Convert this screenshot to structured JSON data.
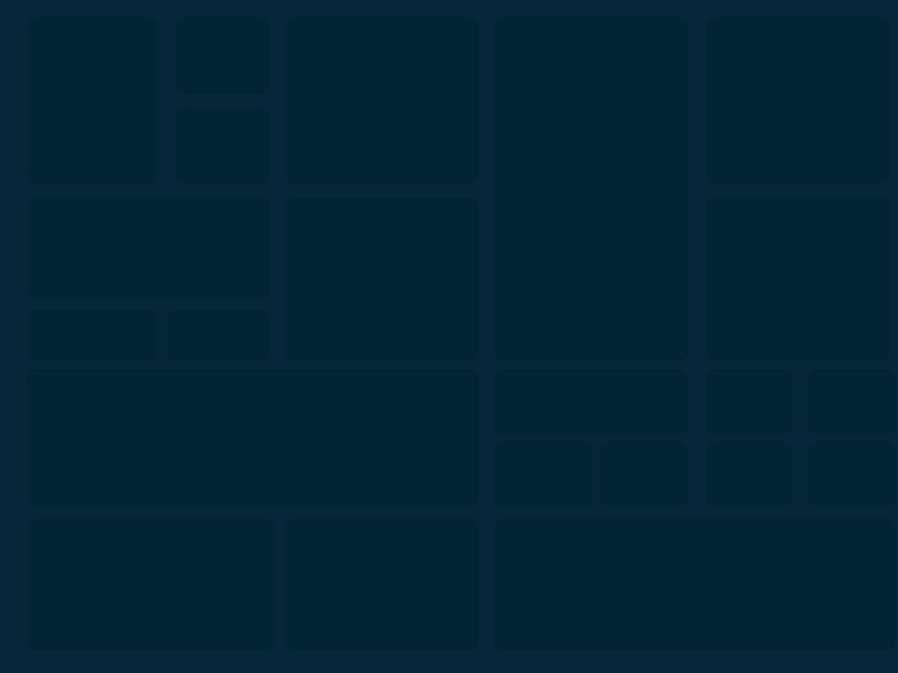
{
  "screen": {
    "background_color": "#04273a",
    "tile_color": "#012633",
    "tile_border_color": "#03212e",
    "tile_count": 22,
    "state": "loading-skeleton"
  }
}
